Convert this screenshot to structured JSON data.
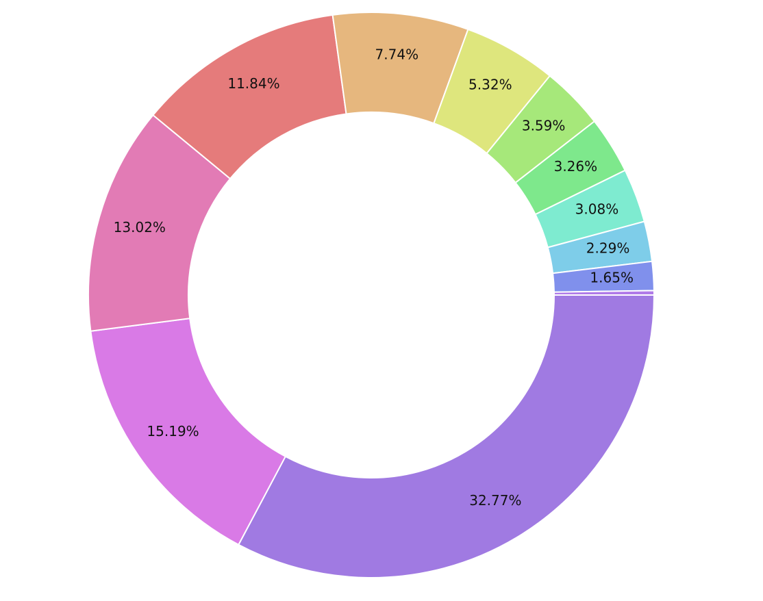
{
  "chart_data": {
    "type": "donut",
    "values": [
      32.77,
      15.19,
      13.02,
      11.84,
      7.74,
      5.32,
      3.59,
      3.26,
      3.08,
      2.29,
      1.65,
      0.25
    ],
    "value_labels": [
      "32.77%",
      "15.19%",
      "13.02%",
      "11.84%",
      "7.74%",
      "5.32%",
      "3.59%",
      "3.26%",
      "3.08%",
      "2.29%",
      "1.65%",
      null
    ],
    "colors": [
      "#a07ae2",
      "#d97ae6",
      "#e27bb5",
      "#e57b7b",
      "#e6b77e",
      "#dee67d",
      "#a6e87a",
      "#7ee88c",
      "#7eebd0",
      "#7ecde9",
      "#8090ec",
      "#b07ae8"
    ]
  }
}
